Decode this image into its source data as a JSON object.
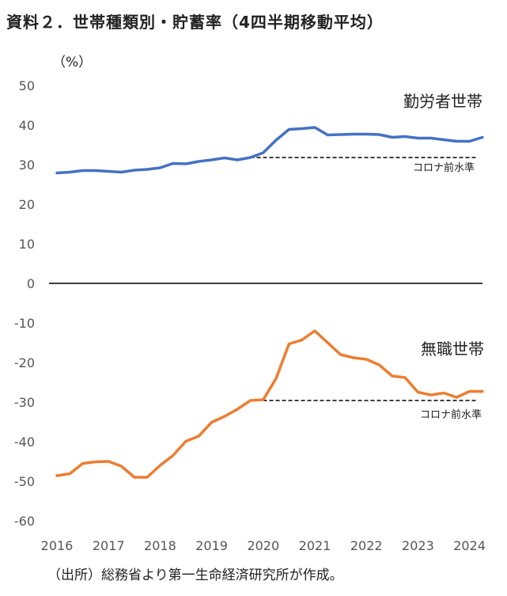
{
  "header": {
    "title": "資料２．世帯種類別・貯蓄率（4四半期移動平均）",
    "unit": "（%）"
  },
  "footer": {
    "source": "（出所）総務省より第一生命経済研究所が作成。"
  },
  "chart_data": {
    "type": "line",
    "ylim": [
      -60,
      50
    ],
    "y_ticks": [
      50,
      40,
      30,
      20,
      10,
      0,
      -10,
      -20,
      -30,
      -40,
      -50,
      -60
    ],
    "x_ticks": [
      "2016",
      "2017",
      "2018",
      "2019",
      "2020",
      "2021",
      "2022",
      "2023",
      "2024"
    ],
    "grid": false,
    "colors": {
      "employed": "#4472C4",
      "unemployed": "#ED7D31",
      "zero_line": "#000000",
      "reference": "#000000"
    },
    "x": [
      "2016Q1",
      "2016Q2",
      "2016Q3",
      "2016Q4",
      "2017Q1",
      "2017Q2",
      "2017Q3",
      "2017Q4",
      "2018Q1",
      "2018Q2",
      "2018Q3",
      "2018Q4",
      "2019Q1",
      "2019Q2",
      "2019Q3",
      "2019Q4",
      "2020Q1",
      "2020Q2",
      "2020Q3",
      "2020Q4",
      "2021Q1",
      "2021Q2",
      "2021Q3",
      "2021Q4",
      "2022Q1",
      "2022Q2",
      "2022Q3",
      "2022Q4",
      "2023Q1",
      "2023Q2",
      "2023Q3",
      "2023Q4",
      "2024Q1",
      "2024Q2"
    ],
    "series": [
      {
        "name": "勤労者世帯",
        "color": "#4472C4",
        "values": [
          27.9,
          28.1,
          28.5,
          28.5,
          28.3,
          28.1,
          28.6,
          28.8,
          29.2,
          30.3,
          30.2,
          30.8,
          31.2,
          31.7,
          31.2,
          31.8,
          33.0,
          36.2,
          38.9,
          39.1,
          39.4,
          37.5,
          37.6,
          37.7,
          37.7,
          37.6,
          36.9,
          37.1,
          36.7,
          36.7,
          36.3,
          35.9,
          35.9,
          36.9
        ]
      },
      {
        "name": "無職世帯",
        "color": "#ED7D31",
        "values": [
          -48.6,
          -48.1,
          -45.5,
          -45.1,
          -45.0,
          -46.2,
          -49.0,
          -49.0,
          -46.0,
          -43.5,
          -39.9,
          -38.6,
          -35.1,
          -33.6,
          -31.8,
          -29.6,
          -29.4,
          -24.0,
          -15.3,
          -14.3,
          -12.0,
          -15.0,
          -18.0,
          -18.8,
          -19.2,
          -20.6,
          -23.4,
          -23.8,
          -27.5,
          -28.2,
          -27.7,
          -28.8,
          -27.3,
          -27.3
        ]
      }
    ],
    "reference_lines": [
      {
        "series": "勤労者世帯",
        "label": "コロナ前水準",
        "value": 31.8,
        "from": "2019Q4",
        "to": "2024Q2"
      },
      {
        "series": "無職世帯",
        "label": "コロナ前水準",
        "value": -29.6,
        "from": "2019Q4",
        "to": "2024Q2"
      }
    ]
  }
}
